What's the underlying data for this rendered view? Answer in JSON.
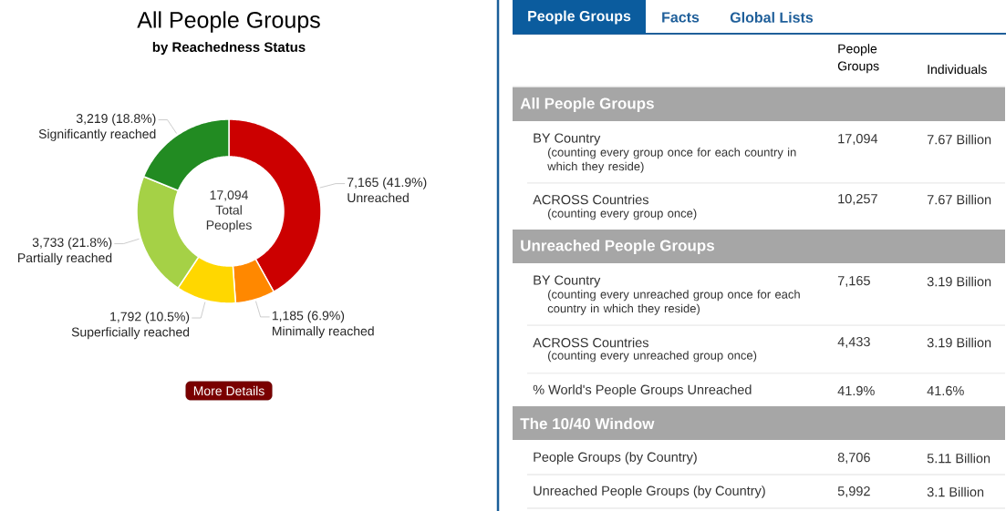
{
  "chart_data": [
    {
      "type": "donut",
      "title": "All People Groups",
      "subtitle": "by Reachedness Status",
      "categories": [
        "Unreached",
        "Minimally reached",
        "Superficially reached",
        "Partially reached",
        "Significantly reached"
      ],
      "values": [
        7165,
        1185,
        1792,
        3733,
        3219
      ],
      "value_labels": [
        "7,165 (41.9%)",
        "1,185 (6.9%)",
        "1,792 (10.5%)",
        "3,733 (21.8%)",
        "3,219 (18.8%)"
      ],
      "colors": [
        "#cc0000",
        "#ff8800",
        "#ffd700",
        "#a5d146",
        "#228b22"
      ],
      "annotations": [
        "17,094 Total Peoples",
        "More Details"
      ]
    },
    {
      "type": "other",
      "annotations": [
        "People Groups",
        "Facts",
        "Global Lists",
        "People Groups",
        "Individuals",
        "All People Groups",
        "BY Country",
        "(counting every group once for each country in which they reside)",
        "17,094",
        "7.67 Billion",
        "ACROSS Countries",
        "(counting every group once)",
        "10,257",
        "7.67 Billion",
        "Unreached People Groups",
        "BY Country",
        "(counting every unreached group once for each country in which they reside)",
        "7,165",
        "3.19 Billion",
        "ACROSS Countries",
        "(counting every unreached group once)",
        "4,433",
        "3.19 Billion",
        "% World's People Groups Unreached",
        "41.9%",
        "41.6%",
        "The 10/40 Window",
        "People Groups (by Country)",
        "8,706",
        "5.11 Billion",
        "Unreached People Groups (by Country)",
        "5,992",
        "3.1 Billion"
      ]
    }
  ]
}
